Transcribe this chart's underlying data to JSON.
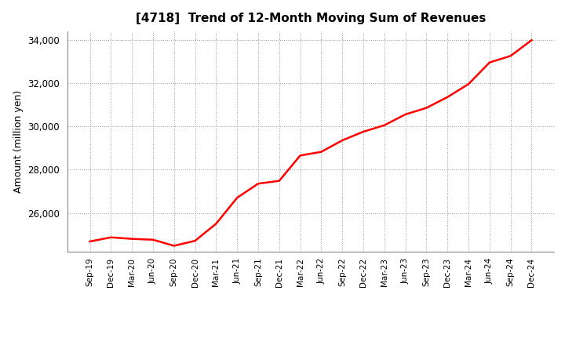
{
  "title": "[4718]  Trend of 12-Month Moving Sum of Revenues",
  "ylabel": "Amount (million yen)",
  "line_color": "#ff0000",
  "line_width": 1.8,
  "background_color": "#ffffff",
  "grid_color": "#999999",
  "ylim": [
    24200,
    34400
  ],
  "yticks": [
    26000,
    28000,
    30000,
    32000,
    34000
  ],
  "x_labels": [
    "Sep-19",
    "Dec-19",
    "Mar-20",
    "Jun-20",
    "Sep-20",
    "Dec-20",
    "Mar-21",
    "Jun-21",
    "Sep-21",
    "Dec-21",
    "Mar-22",
    "Jun-22",
    "Sep-22",
    "Dec-22",
    "Mar-23",
    "Jun-23",
    "Sep-23",
    "Dec-23",
    "Mar-24",
    "Jun-24",
    "Sep-24",
    "Dec-24"
  ],
  "y_values": [
    24680,
    24870,
    24800,
    24760,
    24480,
    24710,
    25500,
    26700,
    27350,
    27480,
    28650,
    28820,
    29350,
    29750,
    30050,
    30550,
    30850,
    31350,
    31950,
    32950,
    33250,
    33980
  ]
}
